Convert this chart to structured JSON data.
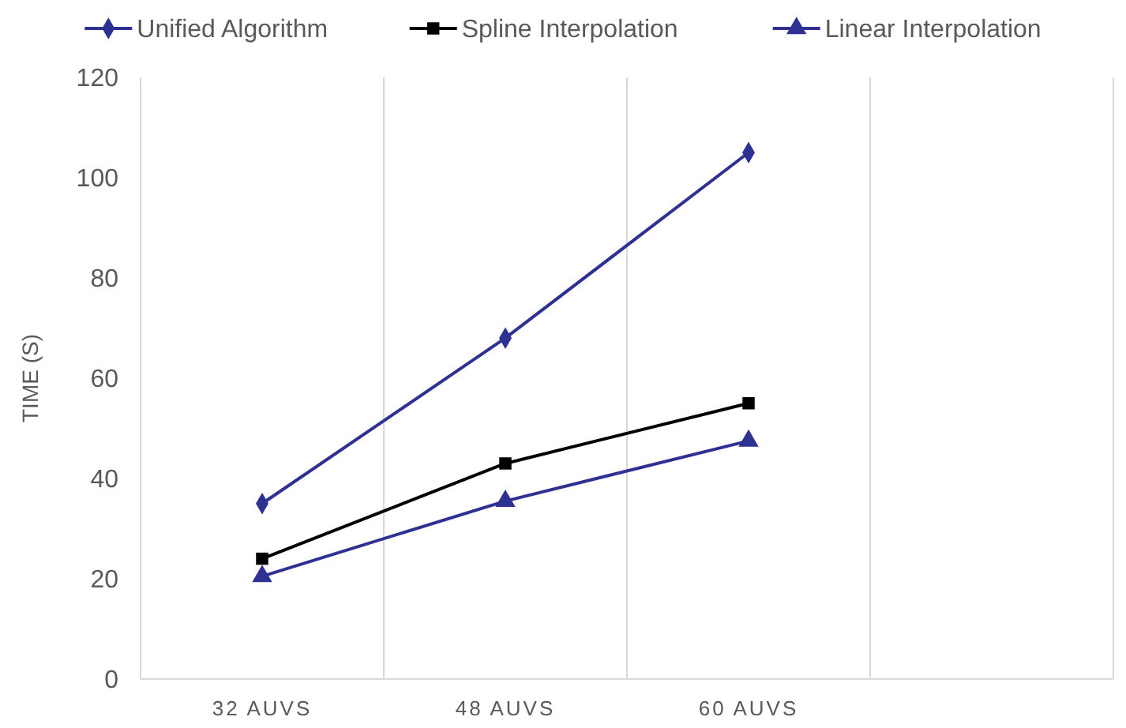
{
  "chart_data": {
    "type": "line",
    "ylabel": "TIME (S)",
    "categories": [
      "32 AUVS",
      "48 AUVS",
      "60 AUVS",
      null
    ],
    "series": [
      {
        "name": "Unified Algorithm",
        "color": "#2e3192",
        "marker": "diamond",
        "values": [
          35,
          68,
          105,
          null
        ]
      },
      {
        "name": "Spline Interpolation",
        "color": "#000000",
        "marker": "square",
        "values": [
          24,
          43,
          55,
          null
        ]
      },
      {
        "name": "Linear Interpolation",
        "color": "#2e3192",
        "marker": "triangle",
        "values": [
          20.5,
          35.5,
          47.5,
          null
        ]
      }
    ],
    "ylim": [
      0,
      120
    ],
    "yticks": [
      0,
      20,
      40,
      60,
      80,
      100,
      120
    ],
    "grid": "x",
    "legend": "top",
    "line_style": "solid"
  }
}
